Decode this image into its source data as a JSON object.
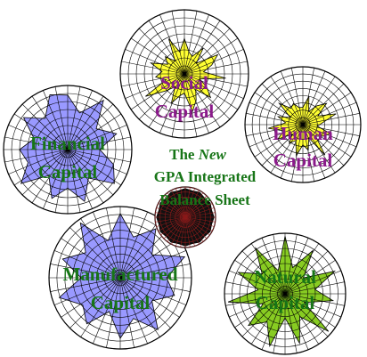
{
  "center_title": {
    "line1_prefix": "The ",
    "line1_emphasis": "New",
    "line2": "GPA Integrated",
    "line3": "Balance Sheet",
    "color": "#177517"
  },
  "capitals": [
    {
      "id": "social",
      "lines": [
        "Social",
        "Capital"
      ],
      "fill": "#ffff33",
      "label_color": "#8b1a8b",
      "values": [
        0.55,
        0.35,
        0.3,
        0.5,
        0.25,
        0.6,
        0.45,
        0.3,
        0.65,
        0.25,
        0.4,
        0.55,
        0.3,
        0.45,
        0.6,
        0.3,
        0.35,
        0.5,
        0.25,
        0.4,
        0.7,
        0.3,
        0.45,
        0.35,
        0.55,
        0.3,
        0.4,
        0.25,
        0.6,
        0.35
      ]
    },
    {
      "id": "human",
      "lines": [
        "Human",
        "Capital"
      ],
      "fill": "#ffff33",
      "label_color": "#8b1a8b",
      "values": [
        0.3,
        0.5,
        0.25,
        0.4,
        0.55,
        0.3,
        0.6,
        0.35,
        0.25,
        0.5,
        0.4,
        0.3,
        0.65,
        0.25,
        0.45,
        0.35,
        0.55,
        0.3,
        0.4,
        0.25,
        0.5,
        0.35,
        0.6,
        0.3,
        0.45,
        0.25,
        0.55,
        0.35,
        0.4,
        0.3
      ]
    },
    {
      "id": "financial",
      "lines": [
        "Financial",
        "Capital"
      ],
      "fill": "#9999ff",
      "label_color": "#177517",
      "values": [
        0.85,
        0.6,
        0.95,
        0.55,
        0.8,
        0.5,
        0.75,
        0.9,
        0.55,
        0.85,
        0.6,
        0.8,
        0.5,
        0.9,
        0.65,
        0.75,
        0.55,
        0.85,
        0.6,
        0.9
      ]
    },
    {
      "id": "manufactured",
      "lines": [
        "Manufactured",
        "Capital"
      ],
      "fill": "#9999ff",
      "label_color": "#177517",
      "values": [
        0.9,
        0.6,
        0.85,
        0.55,
        0.95,
        0.65,
        0.8,
        0.55,
        0.9,
        0.6,
        0.85,
        0.5,
        0.8,
        0.65,
        0.9,
        0.55,
        0.85,
        0.6,
        0.95,
        0.55
      ]
    },
    {
      "id": "natural",
      "lines": [
        "Natural",
        "Capital"
      ],
      "fill": "#88cc22",
      "label_color": "#177517",
      "values": [
        0.95,
        0.45,
        0.85,
        0.4,
        0.9,
        0.5,
        0.8,
        0.35,
        0.95,
        0.45,
        0.85,
        0.4,
        0.9,
        0.55,
        0.8,
        0.4,
        0.95,
        0.45,
        0.85,
        0.5,
        0.9,
        0.4
      ]
    },
    {
      "id": "core",
      "lines": [],
      "fill": "#111111",
      "label_color": "#177517",
      "values": [
        0.95,
        0.9,
        0.95,
        0.9,
        0.95,
        0.9,
        0.95,
        0.9,
        0.95,
        0.9,
        0.95,
        0.9,
        0.95,
        0.9,
        0.95,
        0.9,
        0.95,
        0.9,
        0.95,
        0.9,
        0.95,
        0.9,
        0.95,
        0.9
      ]
    }
  ]
}
